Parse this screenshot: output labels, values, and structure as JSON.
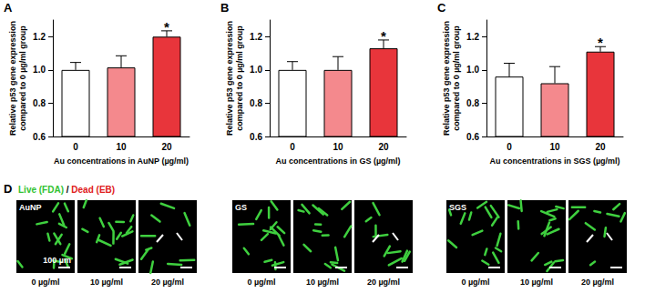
{
  "chart_data": [
    {
      "type": "bar",
      "panel": "A",
      "ylabel": "Relative p53 gene expression\ncompared to 0 µg/ml group",
      "xlabel": "Au concentrations in AuNP (µg/ml)",
      "categories": [
        "0",
        "10",
        "20"
      ],
      "values": [
        1.0,
        1.015,
        1.2
      ],
      "errors": [
        0.045,
        0.07,
        0.035
      ],
      "colors": [
        "#ffffff",
        "#f4898d",
        "#e8353b"
      ],
      "ylim": [
        0.6,
        1.3
      ],
      "yticks": [
        0.6,
        0.8,
        {
          "value": 1,
          "label": "1.0"
        },
        1.2
      ],
      "grid": false,
      "annotations": [
        {
          "category": "20",
          "text": "*"
        }
      ]
    },
    {
      "type": "bar",
      "panel": "B",
      "ylabel": "Relative p53 gene expression\ncompared to 0 µg/ml group",
      "xlabel": "Au concentrations in GS (µg/ml)",
      "categories": [
        "0",
        "10",
        "20"
      ],
      "values": [
        1.0,
        1.0,
        1.13
      ],
      "errors": [
        0.05,
        0.08,
        0.05
      ],
      "colors": [
        "#ffffff",
        "#f4898d",
        "#e8353b"
      ],
      "ylim": [
        0.6,
        1.3
      ],
      "yticks": [
        0.6,
        0.8,
        {
          "value": 1,
          "label": "1.0"
        },
        1.2
      ],
      "grid": false,
      "annotations": [
        {
          "category": "20",
          "text": "*"
        }
      ]
    },
    {
      "type": "bar",
      "panel": "C",
      "ylabel": "Relative p53 gene expression\ncompared to 0 µg/ml group",
      "xlabel": "Au concentrations in SGS (µg/ml)",
      "categories": [
        "0",
        "10",
        "20"
      ],
      "values": [
        0.96,
        0.92,
        1.11
      ],
      "errors": [
        0.08,
        0.1,
        0.03
      ],
      "colors": [
        "#ffffff",
        "#f4898d",
        "#e8353b"
      ],
      "ylim": [
        0.6,
        1.3
      ],
      "yticks": [
        0.6,
        0.8,
        {
          "value": 1,
          "label": "1.0"
        },
        1.2
      ],
      "grid": false,
      "annotations": [
        {
          "category": "20",
          "text": "*"
        }
      ]
    }
  ],
  "image_panel": {
    "panel": "D",
    "stain_legend": [
      {
        "text": "Live (FDA)",
        "color": "#33c233"
      },
      {
        "text": "/",
        "color": "#000000"
      },
      {
        "text": "Dead (EB)",
        "color": "#e02020"
      }
    ],
    "scale_bar": "100 µm",
    "groups": [
      {
        "name": "AuNP",
        "images": [
          "0 µg/ml",
          "10 µg/ml",
          "20 µg/ml"
        ]
      },
      {
        "name": "GS",
        "images": [
          "0 µg/ml",
          "10 µg/ml",
          "20 µg/ml"
        ]
      },
      {
        "name": "SGS",
        "images": [
          "0 µg/ml",
          "10 µg/ml",
          "20 µg/ml"
        ]
      }
    ]
  }
}
